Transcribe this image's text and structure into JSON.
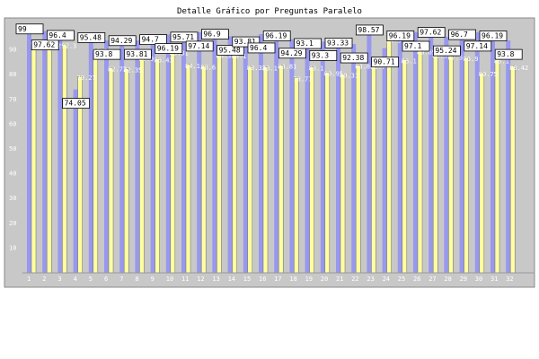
{
  "colors": {
    "background": "#c8c8c8",
    "series_a": "#9898ee",
    "series_b": "#ffffa0",
    "label_box": "#ffffff"
  },
  "chart_data": {
    "type": "bar",
    "title": "Detalle Gráfico por Preguntas Paralelo",
    "xlabel": "",
    "ylabel": "",
    "ylim": [
      0,
      100
    ],
    "yticks": [
      10,
      20,
      30,
      40,
      50,
      60,
      70,
      80,
      90
    ],
    "grid": false,
    "categories": [
      "1",
      "2",
      "3",
      "4",
      "5",
      "6",
      "7",
      "8",
      "9",
      "10",
      "11",
      "12",
      "13",
      "14",
      "15",
      "16",
      "17",
      "18",
      "19",
      "20",
      "21",
      "22",
      "23",
      "24",
      "25",
      "26",
      "27",
      "28",
      "29",
      "30",
      "31",
      "32"
    ],
    "series": [
      {
        "values": [
          99,
          97.62,
          96.4,
          74.05,
          95.48,
          93.8,
          94.29,
          93.81,
          94.7,
          96.19,
          95.71,
          97.14,
          96.9,
          95.48,
          93.81,
          96.4,
          96.19,
          94.29,
          93.1,
          93.3,
          93.33,
          92.38,
          98.57,
          90.71,
          96.19,
          97.1,
          97.62,
          95.24,
          96.7,
          97.14,
          96.19,
          93.8
        ]
      },
      {
        "values": [
          92.8,
          92.2,
          92.3,
          79.27,
          90.3,
          82.77,
          82.35,
          86.9,
          86.43,
          89.31,
          84.1,
          83.6,
          88.3,
          88.1,
          83.33,
          83.1,
          83.81,
          78.77,
          83.1,
          80.95,
          80.31,
          83.8,
          83.7,
          94.3,
          86.1,
          89.69,
          88.3,
          87.5,
          86.9,
          80.75,
          86.1,
          83.42
        ]
      }
    ]
  }
}
